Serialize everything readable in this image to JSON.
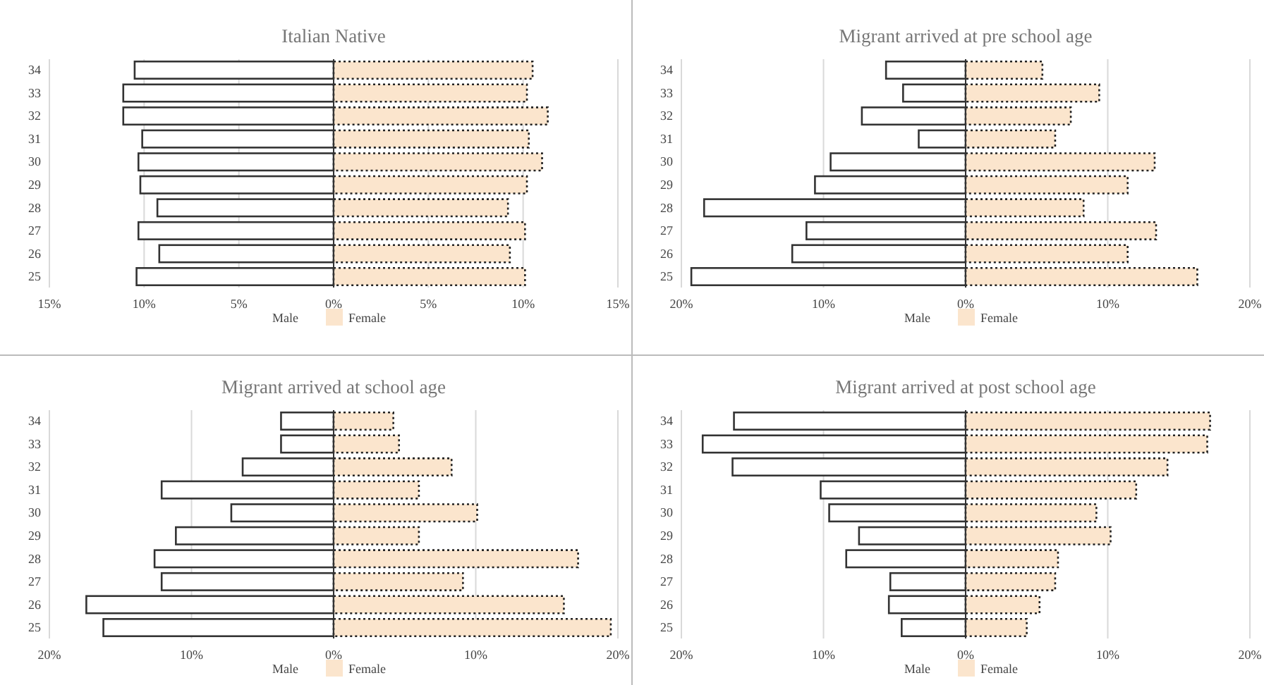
{
  "chart_data": [
    {
      "type": "bar",
      "orientation": "horizontal",
      "stacked": true,
      "title": "Italian Native",
      "categories": [
        "34",
        "33",
        "32",
        "31",
        "30",
        "29",
        "28",
        "27",
        "26",
        "25"
      ],
      "series": [
        {
          "name": "Male",
          "color": "#ffffff",
          "values": [
            -10.5,
            -11.1,
            -11.1,
            -10.1,
            -10.3,
            -10.2,
            -9.3,
            -10.3,
            -9.2,
            -10.4
          ]
        },
        {
          "name": "Female",
          "color": "#fbe5cd",
          "values": [
            10.5,
            10.2,
            11.3,
            10.3,
            11.0,
            10.2,
            9.2,
            10.1,
            9.3,
            10.1
          ]
        }
      ],
      "xlim": [
        -15,
        15
      ],
      "xticks": [
        {
          "value": -15,
          "label": "15%"
        },
        {
          "value": -10,
          "label": "10%"
        },
        {
          "value": -5,
          "label": "5%"
        },
        {
          "value": 0,
          "label": "0%"
        },
        {
          "value": 5,
          "label": "5%"
        },
        {
          "value": 10,
          "label": "10%"
        },
        {
          "value": 15,
          "label": "15%"
        }
      ],
      "grid": "x",
      "legend": "bottom"
    },
    {
      "type": "bar",
      "orientation": "horizontal",
      "stacked": true,
      "title": "Migrant arrived at pre school age",
      "categories": [
        "34",
        "33",
        "32",
        "31",
        "30",
        "29",
        "28",
        "27",
        "26",
        "25"
      ],
      "series": [
        {
          "name": "Male",
          "color": "#ffffff",
          "values": [
            -5.6,
            -4.4,
            -7.3,
            -3.3,
            -9.5,
            -10.6,
            -18.4,
            -11.2,
            -12.2,
            -19.3
          ]
        },
        {
          "name": "Female",
          "color": "#fbe5cd",
          "values": [
            5.4,
            9.4,
            7.4,
            6.3,
            13.3,
            11.4,
            8.3,
            13.4,
            11.4,
            16.3
          ]
        }
      ],
      "xlim": [
        -20,
        20
      ],
      "xticks": [
        {
          "value": -20,
          "label": "20%"
        },
        {
          "value": -10,
          "label": "10%"
        },
        {
          "value": 0,
          "label": "0%"
        },
        {
          "value": 10,
          "label": "10%"
        },
        {
          "value": 20,
          "label": "20%"
        }
      ],
      "grid": "x",
      "legend": "bottom"
    },
    {
      "type": "bar",
      "orientation": "horizontal",
      "stacked": true,
      "title": "Migrant arrived at school age",
      "categories": [
        "34",
        "33",
        "32",
        "31",
        "30",
        "29",
        "28",
        "27",
        "26",
        "25"
      ],
      "series": [
        {
          "name": "Male",
          "color": "#ffffff",
          "values": [
            -3.7,
            -3.7,
            -6.4,
            -12.1,
            -7.2,
            -11.1,
            -12.6,
            -12.1,
            -17.4,
            -16.2
          ]
        },
        {
          "name": "Female",
          "color": "#fbe5cd",
          "values": [
            4.2,
            4.6,
            8.3,
            6.0,
            10.1,
            6.0,
            17.2,
            9.1,
            16.2,
            19.5
          ]
        }
      ],
      "xlim": [
        -20,
        20
      ],
      "xticks": [
        {
          "value": -20,
          "label": "20%"
        },
        {
          "value": -10,
          "label": "10%"
        },
        {
          "value": 0,
          "label": "0%"
        },
        {
          "value": 10,
          "label": "10%"
        },
        {
          "value": 20,
          "label": "20%"
        }
      ],
      "grid": "x",
      "legend": "bottom"
    },
    {
      "type": "bar",
      "orientation": "horizontal",
      "stacked": true,
      "title": "Migrant arrived at post school age",
      "categories": [
        "34",
        "33",
        "32",
        "31",
        "30",
        "29",
        "28",
        "27",
        "26",
        "25"
      ],
      "series": [
        {
          "name": "Male",
          "color": "#ffffff",
          "values": [
            -16.3,
            -18.5,
            -16.4,
            -10.2,
            -9.6,
            -7.5,
            -8.4,
            -5.3,
            -5.4,
            -4.5
          ]
        },
        {
          "name": "Female",
          "color": "#fbe5cd",
          "values": [
            17.2,
            17.0,
            14.2,
            12.0,
            9.2,
            10.2,
            6.5,
            6.3,
            5.2,
            4.3
          ]
        }
      ],
      "xlim": [
        -20,
        20
      ],
      "xticks": [
        {
          "value": -20,
          "label": "20%"
        },
        {
          "value": -10,
          "label": "10%"
        },
        {
          "value": 0,
          "label": "0%"
        },
        {
          "value": 10,
          "label": "10%"
        },
        {
          "value": 20,
          "label": "20%"
        }
      ],
      "grid": "x",
      "legend": "bottom"
    }
  ]
}
